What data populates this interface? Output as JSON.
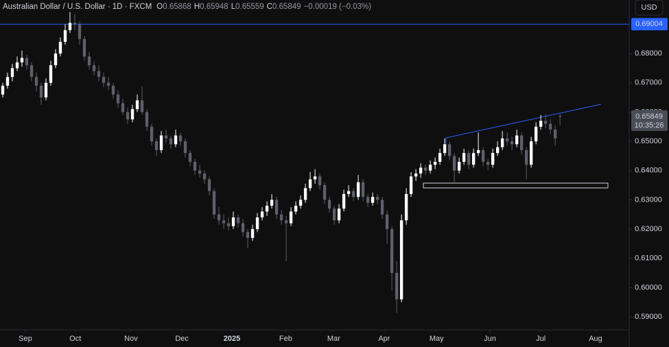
{
  "chart_data": {
    "type": "candlestick",
    "header": {
      "title": "Australian Dollar / U.S. Dollar · 1D · FXCM",
      "fields": [
        {
          "key": "O",
          "value": "0.65868"
        },
        {
          "key": "H",
          "value": "0.65948"
        },
        {
          "key": "L",
          "value": "0.65559"
        },
        {
          "key": "C",
          "value": "0.65849"
        }
      ],
      "change": "−0.00019 (−0.03%)"
    },
    "currency": "USD",
    "up_color": "#ffffff",
    "down_color": "#5d606b",
    "level": {
      "value": 0.69004,
      "label": "0.69004",
      "color": "#2962ff"
    },
    "last": {
      "value": 0.65849,
      "label": "0.65849",
      "countdown": "10:35:26"
    },
    "ylim": [
      0.5858,
      0.6983
    ],
    "yticks": [
      {
        "value": 0.59,
        "label": "0.59000"
      },
      {
        "value": 0.6,
        "label": "0.60000"
      },
      {
        "value": 0.61,
        "label": "0.61000"
      },
      {
        "value": 0.62,
        "label": "0.62000"
      },
      {
        "value": 0.63,
        "label": "0.63000"
      },
      {
        "value": 0.64,
        "label": "0.64000"
      },
      {
        "value": 0.65,
        "label": "0.65000"
      },
      {
        "value": 0.66,
        "label": "0.66000"
      },
      {
        "value": 0.67,
        "label": "0.67000"
      },
      {
        "value": 0.68,
        "label": "0.68000"
      }
    ],
    "xlim": [
      -0.57,
      130.4
    ],
    "xticks": [
      {
        "value": 4.7,
        "label": "Sep"
      },
      {
        "value": 15.1,
        "label": "Oct"
      },
      {
        "value": 26.7,
        "label": "Nov"
      },
      {
        "value": 37.3,
        "label": "Dec"
      },
      {
        "value": 47.7,
        "label": "2025"
      },
      {
        "value": 58.9,
        "label": "Feb"
      },
      {
        "value": 68.9,
        "label": "Mar"
      },
      {
        "value": 79.4,
        "label": "Apr"
      },
      {
        "value": 90.3,
        "label": "May"
      },
      {
        "value": 101.4,
        "label": "Jun"
      },
      {
        "value": 112,
        "label": "Jul"
      },
      {
        "value": 123.4,
        "label": "Aug"
      }
    ],
    "candles": [
      [
        0.666,
        0.67,
        0.665,
        0.669
      ],
      [
        0.669,
        0.6735,
        0.668,
        0.672
      ],
      [
        0.672,
        0.6765,
        0.6705,
        0.675
      ],
      [
        0.675,
        0.679,
        0.674,
        0.677
      ],
      [
        0.677,
        0.681,
        0.6755,
        0.6785
      ],
      [
        0.6785,
        0.6795,
        0.6745,
        0.676
      ],
      [
        0.676,
        0.677,
        0.6705,
        0.672
      ],
      [
        0.672,
        0.6735,
        0.667,
        0.669
      ],
      [
        0.669,
        0.67,
        0.6625,
        0.665
      ],
      [
        0.665,
        0.6715,
        0.664,
        0.67
      ],
      [
        0.67,
        0.6775,
        0.669,
        0.676
      ],
      [
        0.676,
        0.6815,
        0.675,
        0.68
      ],
      [
        0.68,
        0.6855,
        0.679,
        0.684
      ],
      [
        0.684,
        0.69,
        0.683,
        0.688
      ],
      [
        0.688,
        0.6942,
        0.687,
        0.6905
      ],
      [
        0.6905,
        0.6935,
        0.688,
        0.69
      ],
      [
        0.69,
        0.691,
        0.683,
        0.685
      ],
      [
        0.685,
        0.686,
        0.6775,
        0.679
      ],
      [
        0.679,
        0.6805,
        0.6745,
        0.676
      ],
      [
        0.676,
        0.6775,
        0.6725,
        0.674
      ],
      [
        0.674,
        0.676,
        0.6705,
        0.672
      ],
      [
        0.672,
        0.6735,
        0.6685,
        0.67
      ],
      [
        0.67,
        0.672,
        0.6675,
        0.669
      ],
      [
        0.669,
        0.67,
        0.6645,
        0.666
      ],
      [
        0.666,
        0.6675,
        0.6615,
        0.663
      ],
      [
        0.663,
        0.6645,
        0.659,
        0.66
      ],
      [
        0.66,
        0.6615,
        0.656,
        0.6575
      ],
      [
        0.6575,
        0.6625,
        0.6565,
        0.661
      ],
      [
        0.661,
        0.666,
        0.66,
        0.664
      ],
      [
        0.664,
        0.6688,
        0.659,
        0.66
      ],
      [
        0.66,
        0.661,
        0.6535,
        0.655
      ],
      [
        0.655,
        0.656,
        0.6485,
        0.65
      ],
      [
        0.65,
        0.651,
        0.645,
        0.647
      ],
      [
        0.647,
        0.6535,
        0.646,
        0.652
      ],
      [
        0.652,
        0.654,
        0.6495,
        0.651
      ],
      [
        0.651,
        0.652,
        0.6475,
        0.649
      ],
      [
        0.649,
        0.654,
        0.648,
        0.652
      ],
      [
        0.652,
        0.653,
        0.6485,
        0.65
      ],
      [
        0.65,
        0.651,
        0.6445,
        0.646
      ],
      [
        0.646,
        0.647,
        0.6415,
        0.643
      ],
      [
        0.643,
        0.644,
        0.6385,
        0.64
      ],
      [
        0.64,
        0.642,
        0.6375,
        0.639
      ],
      [
        0.639,
        0.64,
        0.6355,
        0.637
      ],
      [
        0.637,
        0.638,
        0.6315,
        0.633
      ],
      [
        0.633,
        0.634,
        0.6235,
        0.625
      ],
      [
        0.625,
        0.6275,
        0.6215,
        0.623
      ],
      [
        0.623,
        0.625,
        0.62,
        0.622
      ],
      [
        0.622,
        0.624,
        0.6195,
        0.621
      ],
      [
        0.621,
        0.626,
        0.62,
        0.624
      ],
      [
        0.624,
        0.625,
        0.6205,
        0.622
      ],
      [
        0.622,
        0.6235,
        0.6175,
        0.619
      ],
      [
        0.619,
        0.62,
        0.6135,
        0.617
      ],
      [
        0.617,
        0.6215,
        0.616,
        0.62
      ],
      [
        0.62,
        0.6255,
        0.619,
        0.624
      ],
      [
        0.624,
        0.6275,
        0.623,
        0.626
      ],
      [
        0.626,
        0.6295,
        0.6245,
        0.628
      ],
      [
        0.628,
        0.632,
        0.627,
        0.63
      ],
      [
        0.63,
        0.631,
        0.6235,
        0.625
      ],
      [
        0.625,
        0.6265,
        0.6215,
        0.623
      ],
      [
        0.623,
        0.6245,
        0.609,
        0.622
      ],
      [
        0.622,
        0.6275,
        0.621,
        0.626
      ],
      [
        0.626,
        0.6295,
        0.625,
        0.628
      ],
      [
        0.628,
        0.6315,
        0.627,
        0.63
      ],
      [
        0.63,
        0.6355,
        0.629,
        0.634
      ],
      [
        0.634,
        0.6395,
        0.633,
        0.637
      ],
      [
        0.637,
        0.6405,
        0.6355,
        0.638
      ],
      [
        0.638,
        0.639,
        0.6335,
        0.635
      ],
      [
        0.635,
        0.636,
        0.6285,
        0.63
      ],
      [
        0.63,
        0.631,
        0.6255,
        0.627
      ],
      [
        0.627,
        0.628,
        0.6215,
        0.623
      ],
      [
        0.623,
        0.6285,
        0.622,
        0.627
      ],
      [
        0.627,
        0.6335,
        0.626,
        0.632
      ],
      [
        0.632,
        0.635,
        0.631,
        0.633
      ],
      [
        0.633,
        0.634,
        0.6295,
        0.631
      ],
      [
        0.631,
        0.6385,
        0.63,
        0.636
      ],
      [
        0.636,
        0.637,
        0.6295,
        0.631
      ],
      [
        0.631,
        0.632,
        0.6275,
        0.629
      ],
      [
        0.629,
        0.6325,
        0.628,
        0.631
      ],
      [
        0.631,
        0.632,
        0.6285,
        0.63
      ],
      [
        0.63,
        0.631,
        0.6235,
        0.625
      ],
      [
        0.625,
        0.6265,
        0.615,
        0.62
      ],
      [
        0.62,
        0.621,
        0.599,
        0.605
      ],
      [
        0.605,
        0.609,
        0.5913,
        0.596
      ],
      [
        0.596,
        0.625,
        0.595,
        0.623
      ],
      [
        0.623,
        0.634,
        0.6215,
        0.632
      ],
      [
        0.632,
        0.6395,
        0.631,
        0.638
      ],
      [
        0.638,
        0.6405,
        0.6365,
        0.639
      ],
      [
        0.639,
        0.6425,
        0.6375,
        0.641
      ],
      [
        0.641,
        0.642,
        0.6385,
        0.64
      ],
      [
        0.64,
        0.6435,
        0.639,
        0.642
      ],
      [
        0.642,
        0.6445,
        0.6405,
        0.643
      ],
      [
        0.643,
        0.6475,
        0.642,
        0.646
      ],
      [
        0.646,
        0.651,
        0.645,
        0.649
      ],
      [
        0.649,
        0.65,
        0.6435,
        0.645
      ],
      [
        0.645,
        0.646,
        0.636,
        0.64
      ],
      [
        0.64,
        0.6445,
        0.639,
        0.643
      ],
      [
        0.643,
        0.6475,
        0.642,
        0.646
      ],
      [
        0.646,
        0.647,
        0.6405,
        0.642
      ],
      [
        0.642,
        0.6475,
        0.641,
        0.646
      ],
      [
        0.646,
        0.653,
        0.645,
        0.647
      ],
      [
        0.647,
        0.648,
        0.6415,
        0.643
      ],
      [
        0.643,
        0.644,
        0.64,
        0.642
      ],
      [
        0.642,
        0.6475,
        0.641,
        0.646
      ],
      [
        0.646,
        0.65,
        0.645,
        0.648
      ],
      [
        0.648,
        0.6535,
        0.647,
        0.651
      ],
      [
        0.651,
        0.653,
        0.6485,
        0.65
      ],
      [
        0.65,
        0.6515,
        0.647,
        0.649
      ],
      [
        0.649,
        0.654,
        0.648,
        0.652
      ],
      [
        0.652,
        0.653,
        0.6455,
        0.647
      ],
      [
        0.647,
        0.648,
        0.637,
        0.642
      ],
      [
        0.642,
        0.6515,
        0.641,
        0.65
      ],
      [
        0.65,
        0.6565,
        0.649,
        0.655
      ],
      [
        0.655,
        0.659,
        0.654,
        0.657
      ],
      [
        0.657,
        0.6592,
        0.6545,
        0.656
      ],
      [
        0.656,
        0.6575,
        0.6525,
        0.654
      ],
      [
        0.654,
        0.6555,
        0.6485,
        0.651
      ],
      [
        0.65868,
        0.65948,
        0.65559,
        0.65849
      ]
    ]
  }
}
